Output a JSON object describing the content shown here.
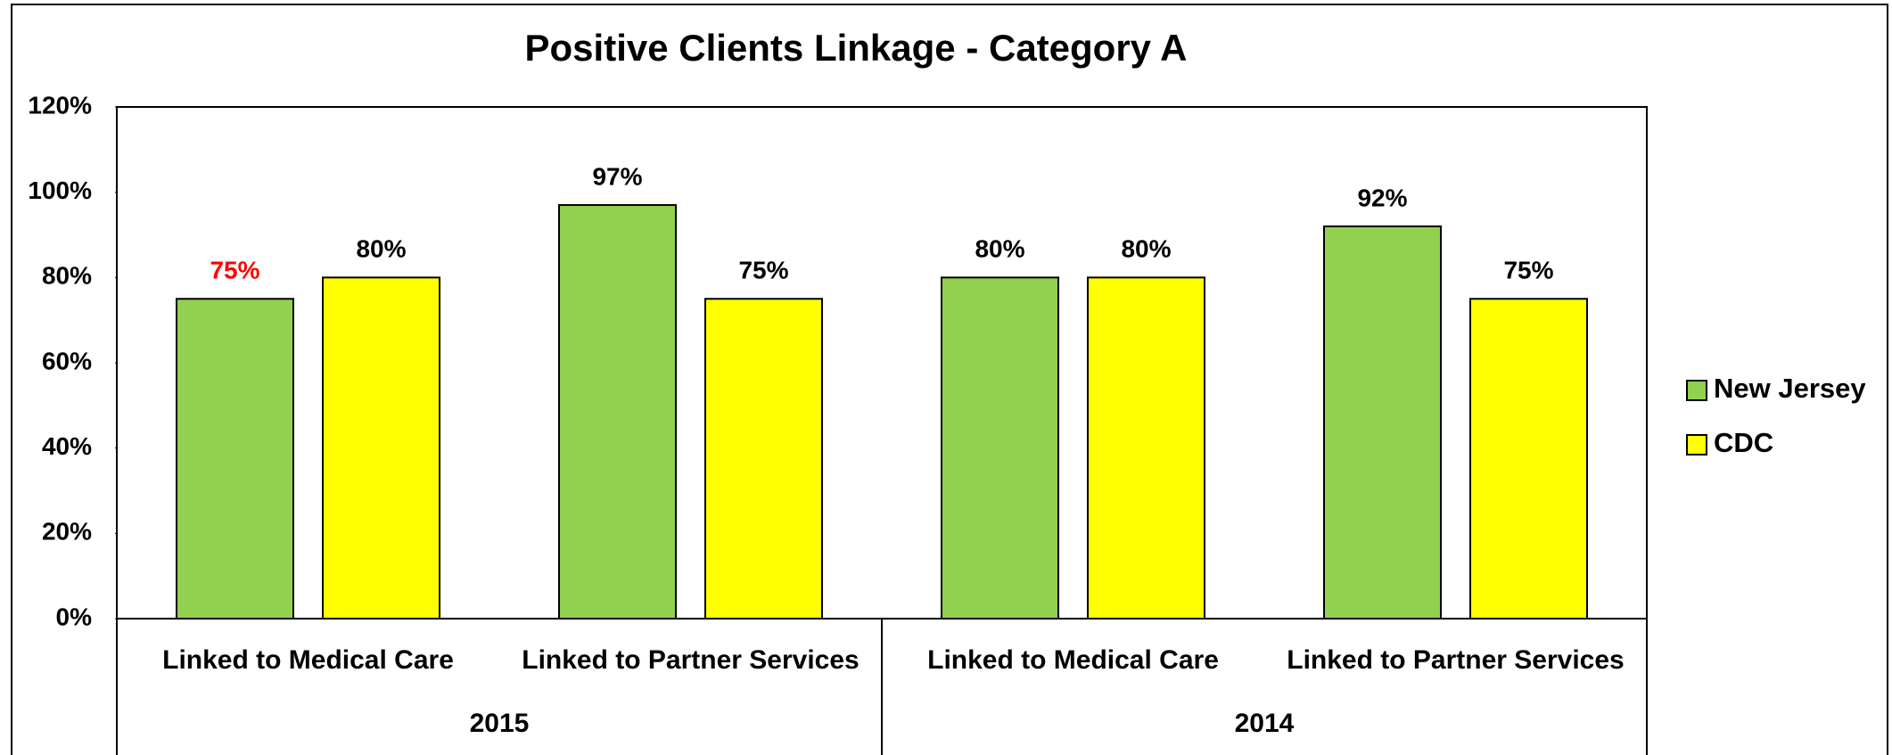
{
  "chart_data": {
    "type": "bar",
    "title": "Positive Clients Linkage - Category A",
    "groups": [
      {
        "name": "2015",
        "categories": [
          "Linked to Medical Care",
          "Linked to Partner Services"
        ]
      },
      {
        "name": "2014",
        "categories": [
          "Linked to Medical Care",
          "Linked to Partner Services"
        ]
      }
    ],
    "series": [
      {
        "name": "New Jersey",
        "color": "#92d050",
        "values": [
          75,
          97,
          80,
          92
        ],
        "value_labels": [
          "75%",
          "97%",
          "80%",
          "92%"
        ],
        "label_colors": [
          "#ff0000",
          "#000000",
          "#000000",
          "#000000"
        ]
      },
      {
        "name": "CDC",
        "color": "#ffff00",
        "values": [
          80,
          75,
          80,
          75
        ],
        "value_labels": [
          "80%",
          "75%",
          "80%",
          "75%"
        ],
        "label_colors": [
          "#000000",
          "#000000",
          "#000000",
          "#000000"
        ]
      }
    ],
    "ylim": [
      0,
      120
    ],
    "yticks": [
      {
        "value": 0,
        "label": "0%"
      },
      {
        "value": 20,
        "label": "20%"
      },
      {
        "value": 40,
        "label": "40%"
      },
      {
        "value": 60,
        "label": "60%"
      },
      {
        "value": 80,
        "label": "80%"
      },
      {
        "value": 100,
        "label": "100%"
      },
      {
        "value": 120,
        "label": "120%"
      }
    ],
    "grid": false,
    "legend": "right"
  }
}
